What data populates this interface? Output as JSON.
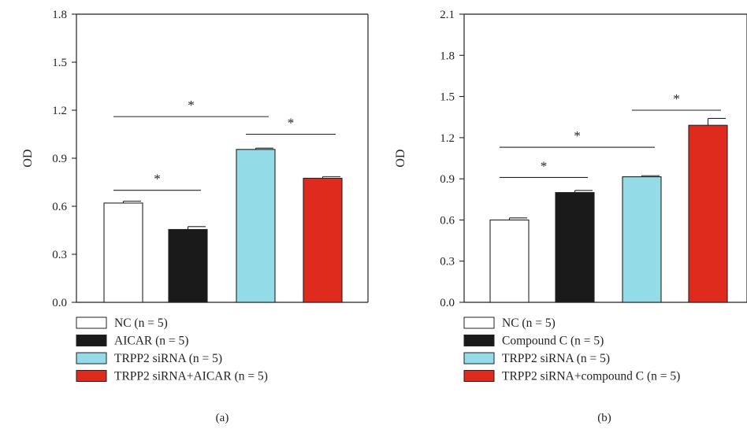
{
  "colors": {
    "nc": "#ffffff",
    "treatment": "#1a1a1a",
    "trpp2": "#93dbe6",
    "combo": "#de2b1e",
    "axis": "#222222"
  },
  "chart_data": [
    {
      "type": "bar",
      "caption": "(a)",
      "ylabel": "OD",
      "ylim": [
        0,
        1.8
      ],
      "yticks": [
        "0.0",
        "0.3",
        "0.6",
        "0.9",
        "1.2",
        "1.5",
        "1.8"
      ],
      "categories": [
        "NC",
        "AICAR",
        "TRPP2 siRNA",
        "TRPP2 siRNA+AICAR"
      ],
      "values": [
        0.62,
        0.455,
        0.955,
        0.775
      ],
      "errors": [
        0.012,
        0.018,
        0.008,
        0.01
      ],
      "colors": [
        "#ffffff",
        "#1a1a1a",
        "#93dbe6",
        "#de2b1e"
      ],
      "significance": [
        {
          "from": 0,
          "to": 1,
          "y": 0.7,
          "label": "*"
        },
        {
          "from": 0,
          "to": 2,
          "y": 1.16,
          "label": "*"
        },
        {
          "from": 2,
          "to": 3,
          "y": 1.05,
          "label": "*"
        }
      ],
      "legend": [
        {
          "label": "NC",
          "n": "(n = 5)"
        },
        {
          "label": "AICAR",
          "n": "(n = 5)"
        },
        {
          "label": "TRPP2 siRNA",
          "n": "(n = 5)"
        },
        {
          "label": "TRPP2 siRNA+AICAR",
          "n": "(n = 5)"
        }
      ]
    },
    {
      "type": "bar",
      "caption": "(b)",
      "ylabel": "OD",
      "ylim": [
        0,
        2.1
      ],
      "yticks": [
        "0.0",
        "0.3",
        "0.6",
        "0.9",
        "1.2",
        "1.5",
        "1.8",
        "2.1"
      ],
      "categories": [
        "NC",
        "Compound C",
        "TRPP2 siRNA",
        "TRPP2 siRNA+compound C"
      ],
      "values": [
        0.6,
        0.8,
        0.915,
        1.29
      ],
      "errors": [
        0.015,
        0.015,
        0.008,
        0.05
      ],
      "colors": [
        "#ffffff",
        "#1a1a1a",
        "#93dbe6",
        "#de2b1e"
      ],
      "significance": [
        {
          "from": 0,
          "to": 1,
          "y": 0.91,
          "label": "*"
        },
        {
          "from": 0,
          "to": 2,
          "y": 1.13,
          "label": "*"
        },
        {
          "from": 2,
          "to": 3,
          "y": 1.4,
          "label": "*"
        }
      ],
      "legend": [
        {
          "label": "NC",
          "n": "(n = 5)"
        },
        {
          "label": "Compound C",
          "n": "(n = 5)"
        },
        {
          "label": "TRPP2 siRNA",
          "n": "(n = 5)"
        },
        {
          "label": "TRPP2 siRNA+compound C",
          "n": "(n = 5)"
        }
      ]
    }
  ]
}
